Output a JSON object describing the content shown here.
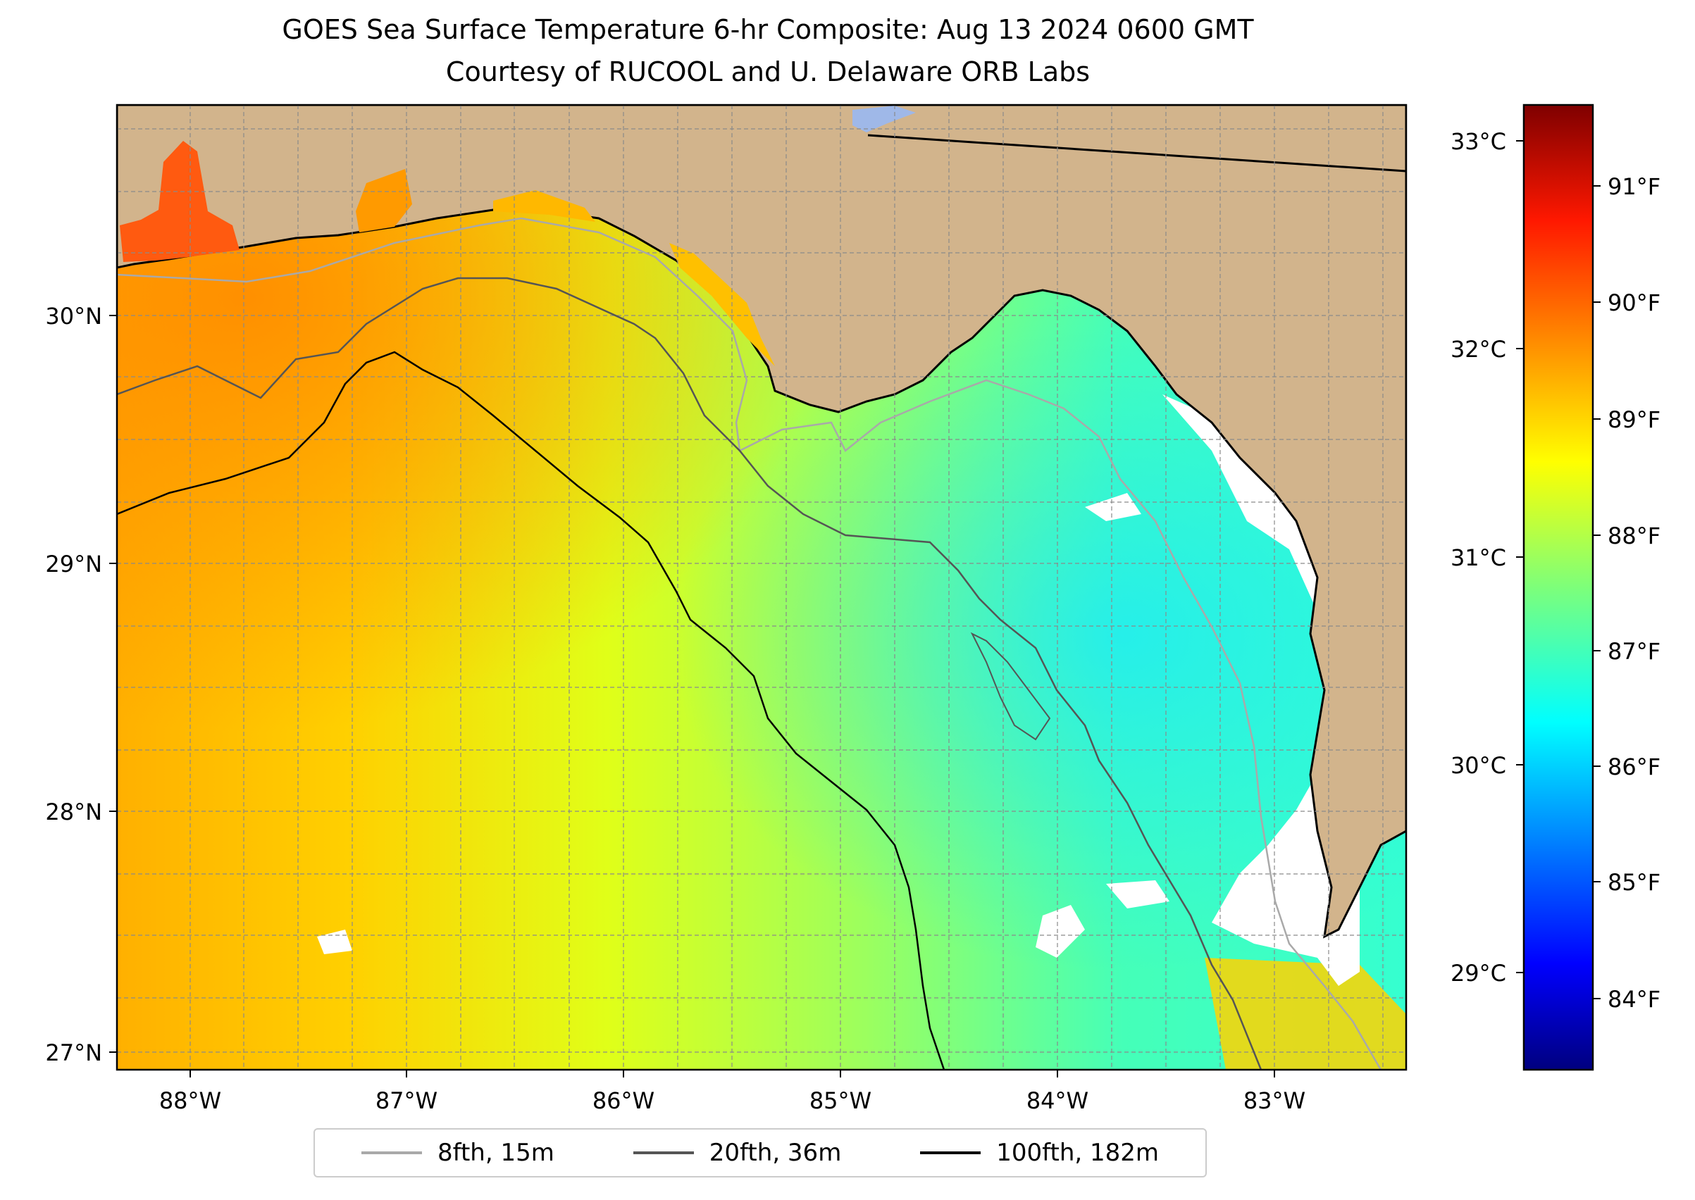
{
  "title": "GOES Sea Surface Temperature 6-hr Composite: Aug 13 2024 0600 GMT",
  "subtitle": "Courtesy of RUCOOL and U. Delaware ORB Labs",
  "map": {
    "lon_range": [
      -88.33,
      -82.4
    ],
    "lat_range": [
      26.95,
      30.86
    ],
    "lon_ticks": [
      "88°W",
      "87°W",
      "86°W",
      "85°W",
      "84°W",
      "83°W"
    ],
    "lat_ticks": [
      "30°N",
      "29°N",
      "28°N",
      "27°N"
    ],
    "land_color": "#d2b48c",
    "no_data_color": "#ffffff",
    "grid": true,
    "colormap": "jet"
  },
  "colorbar": {
    "min_f": 83.4,
    "max_f": 91.6,
    "celsius_ticks": [
      "33°C",
      "32°C",
      "31°C",
      "30°C",
      "29°C"
    ],
    "fahrenheit_ticks": [
      "91°F",
      "90°F",
      "89°F",
      "88°F",
      "87°F",
      "86°F",
      "85°F",
      "84°F"
    ]
  },
  "legend": {
    "placement": "bottom-center",
    "items": [
      {
        "label": "8fth, 15m",
        "color": "#a9a9a9"
      },
      {
        "label": "20fth, 36m",
        "color": "#555555"
      },
      {
        "label": "100fth, 182m",
        "color": "#000000"
      }
    ]
  }
}
